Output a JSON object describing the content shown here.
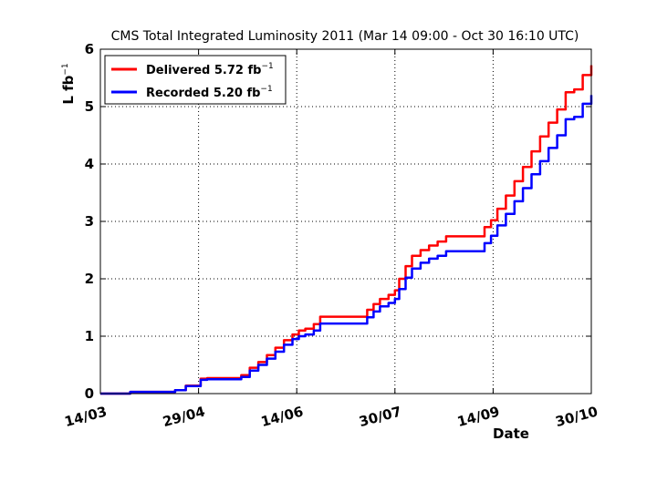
{
  "chart_data": {
    "type": "line",
    "title": "CMS Total Integrated Luminosity 2011 (Mar 14 09:00 - Oct 30 16:10 UTC)",
    "xlabel": "Date",
    "ylabel": {
      "main": "L fb",
      "sup": "−1"
    },
    "x_ticks": [
      "14/03",
      "29/04",
      "14/06",
      "30/07",
      "14/09",
      "30/10"
    ],
    "x_tick_days": [
      0,
      46,
      92,
      138,
      184,
      230
    ],
    "x_range_days": [
      0,
      230
    ],
    "ylim": [
      0,
      6
    ],
    "y_ticks": [
      "0",
      "1",
      "2",
      "3",
      "4",
      "5",
      "6"
    ],
    "grid": true,
    "legend_position": "top-left",
    "series": [
      {
        "name": "Delivered",
        "legend_value": "5.72 fb",
        "legend_sup": "−1",
        "color": "#ff0000",
        "x": [
          0,
          14,
          28,
          35,
          40,
          47,
          50,
          62,
          66,
          70,
          74,
          78,
          82,
          86,
          90,
          93,
          96,
          100,
          103,
          105,
          110,
          118,
          125,
          128,
          131,
          135,
          138,
          140,
          143,
          146,
          150,
          154,
          158,
          162,
          165,
          178,
          180,
          183,
          186,
          190,
          194,
          198,
          202,
          206,
          210,
          214,
          218,
          222,
          226,
          230
        ],
        "y": [
          0,
          0.03,
          0.03,
          0.06,
          0.14,
          0.26,
          0.27,
          0.27,
          0.32,
          0.45,
          0.55,
          0.67,
          0.8,
          0.93,
          1.03,
          1.1,
          1.13,
          1.21,
          1.34,
          1.34,
          1.34,
          1.34,
          1.46,
          1.56,
          1.65,
          1.72,
          1.8,
          2.0,
          2.22,
          2.4,
          2.5,
          2.58,
          2.65,
          2.74,
          2.74,
          2.74,
          2.9,
          3.02,
          3.22,
          3.45,
          3.7,
          3.95,
          4.22,
          4.48,
          4.72,
          4.95,
          5.25,
          5.3,
          5.55,
          5.72
        ]
      },
      {
        "name": "Recorded",
        "legend_value": "5.20 fb",
        "legend_sup": "−1",
        "color": "#0000ff",
        "x": [
          0,
          14,
          28,
          35,
          40,
          47,
          50,
          62,
          66,
          70,
          74,
          78,
          82,
          86,
          90,
          93,
          96,
          100,
          103,
          105,
          110,
          118,
          125,
          128,
          131,
          135,
          138,
          140,
          143,
          146,
          150,
          154,
          158,
          162,
          165,
          178,
          180,
          183,
          186,
          190,
          194,
          198,
          202,
          206,
          210,
          214,
          218,
          222,
          226,
          230
        ],
        "y": [
          0,
          0.03,
          0.03,
          0.06,
          0.13,
          0.24,
          0.25,
          0.25,
          0.29,
          0.4,
          0.5,
          0.61,
          0.73,
          0.85,
          0.95,
          1.0,
          1.03,
          1.1,
          1.22,
          1.22,
          1.22,
          1.22,
          1.33,
          1.43,
          1.52,
          1.58,
          1.65,
          1.82,
          2.02,
          2.18,
          2.28,
          2.35,
          2.4,
          2.48,
          2.48,
          2.48,
          2.62,
          2.75,
          2.93,
          3.13,
          3.35,
          3.58,
          3.82,
          4.05,
          4.28,
          4.5,
          4.78,
          4.82,
          5.05,
          5.2
        ]
      }
    ]
  }
}
